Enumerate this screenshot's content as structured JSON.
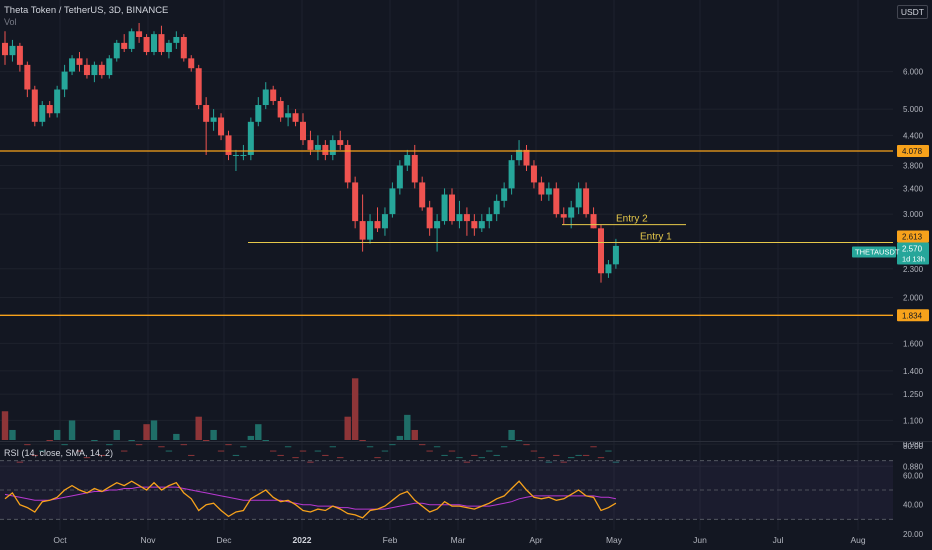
{
  "header": {
    "title": "Theta Token / TetherUS, 3D, BINANCE",
    "volume_label": "Vol",
    "currency": "USDT"
  },
  "rsi_label": "RSI (14, close, SMA, 14, 2)",
  "colors": {
    "background": "#131722",
    "up": "#26a69a",
    "down": "#ef5350",
    "level_line": "#f7a21b",
    "entry_line": "#e6c84a",
    "rsi_line": "#f7a21b",
    "rsi_ma": "#e040fb",
    "axis_text": "#b2b5be",
    "price_tag": "#26a69a"
  },
  "annotations": {
    "entry1": "Entry 1",
    "entry2": "Entry 2"
  },
  "price_axis": {
    "ticks": [
      "6.000",
      "5.000",
      "4.400",
      "3.800",
      "3.400",
      "3.000",
      "2.300",
      "2.000",
      "1.600",
      "1.400",
      "1.250",
      "1.100",
      "0.980",
      "0.880"
    ],
    "level_high": "4.078",
    "level_entry": "2.613",
    "level_low": "1.834",
    "current_price": "2.570",
    "countdown": "1d 13h",
    "symbol_tag": "THETAUSDT"
  },
  "rsi_axis": {
    "ticks": [
      "80.00",
      "60.00",
      "40.00",
      "20.00"
    ]
  },
  "time_axis": {
    "labels": [
      "Oct",
      "Nov",
      "Dec",
      "2022",
      "Feb",
      "Mar",
      "Apr",
      "May",
      "Jun",
      "Jul",
      "Aug"
    ]
  },
  "chart_data": [
    {
      "type": "candlestick",
      "title": "Theta Token / TetherUS, 3D, BINANCE",
      "y_scale": "log",
      "ylim": [
        1.0,
        8.5
      ],
      "horizontal_levels": [
        4.078,
        2.613,
        1.834
      ],
      "entry_levels": [
        {
          "label": "Entry 2",
          "value": 2.85
        },
        {
          "label": "Entry 1",
          "value": 2.613
        }
      ],
      "candles": [
        [
          6.9,
          7.3,
          6.2,
          6.5
        ],
        [
          6.5,
          7.0,
          6.3,
          6.8
        ],
        [
          6.8,
          6.9,
          6.0,
          6.2
        ],
        [
          6.2,
          6.3,
          5.3,
          5.5
        ],
        [
          5.5,
          5.6,
          4.6,
          4.7
        ],
        [
          4.7,
          5.2,
          4.6,
          5.1
        ],
        [
          5.1,
          5.2,
          4.8,
          4.9
        ],
        [
          4.9,
          5.6,
          4.8,
          5.5
        ],
        [
          5.5,
          6.2,
          5.3,
          6.0
        ],
        [
          6.0,
          6.5,
          5.9,
          6.4
        ],
        [
          6.4,
          6.6,
          6.0,
          6.2
        ],
        [
          6.2,
          6.4,
          5.8,
          5.9
        ],
        [
          5.9,
          6.3,
          5.7,
          6.2
        ],
        [
          6.2,
          6.3,
          5.8,
          5.9
        ],
        [
          5.9,
          6.5,
          5.8,
          6.4
        ],
        [
          6.4,
          7.0,
          6.3,
          6.9
        ],
        [
          6.9,
          7.2,
          6.6,
          6.7
        ],
        [
          6.7,
          7.4,
          6.6,
          7.3
        ],
        [
          7.3,
          7.6,
          6.9,
          7.1
        ],
        [
          7.1,
          7.2,
          6.5,
          6.6
        ],
        [
          6.6,
          7.3,
          6.5,
          7.2
        ],
        [
          7.2,
          7.5,
          6.5,
          6.6
        ],
        [
          6.6,
          7.0,
          6.4,
          6.9
        ],
        [
          6.9,
          7.3,
          6.7,
          7.1
        ],
        [
          7.1,
          7.2,
          6.3,
          6.4
        ],
        [
          6.4,
          6.5,
          6.0,
          6.1
        ],
        [
          6.1,
          6.2,
          5.0,
          5.1
        ],
        [
          5.1,
          5.3,
          4.0,
          4.7
        ],
        [
          4.7,
          5.0,
          4.5,
          4.8
        ],
        [
          4.8,
          4.9,
          4.3,
          4.4
        ],
        [
          4.4,
          4.5,
          3.9,
          4.0
        ],
        [
          4.0,
          4.1,
          3.7,
          4.0
        ],
        [
          4.0,
          4.2,
          3.9,
          4.0
        ],
        [
          4.0,
          4.8,
          3.9,
          4.7
        ],
        [
          4.7,
          5.3,
          4.6,
          5.1
        ],
        [
          5.1,
          5.7,
          5.0,
          5.5
        ],
        [
          5.5,
          5.6,
          5.1,
          5.2
        ],
        [
          5.2,
          5.3,
          4.7,
          4.8
        ],
        [
          4.8,
          5.1,
          4.6,
          4.9
        ],
        [
          4.9,
          5.0,
          4.6,
          4.7
        ],
        [
          4.7,
          4.9,
          4.2,
          4.3
        ],
        [
          4.3,
          4.5,
          4.0,
          4.1
        ],
        [
          4.1,
          4.4,
          3.9,
          4.2
        ],
        [
          4.2,
          4.3,
          3.9,
          4.0
        ],
        [
          4.0,
          4.4,
          3.9,
          4.3
        ],
        [
          4.3,
          4.5,
          4.1,
          4.2
        ],
        [
          4.2,
          4.3,
          3.4,
          3.5
        ],
        [
          3.5,
          3.6,
          2.8,
          2.9
        ],
        [
          2.9,
          3.3,
          2.5,
          2.65
        ],
        [
          2.65,
          3.0,
          2.6,
          2.9
        ],
        [
          2.9,
          3.1,
          2.75,
          2.8
        ],
        [
          2.8,
          3.1,
          2.7,
          3.0
        ],
        [
          3.0,
          3.5,
          2.95,
          3.4
        ],
        [
          3.4,
          3.9,
          3.3,
          3.8
        ],
        [
          3.8,
          4.1,
          3.7,
          4.0
        ],
        [
          4.0,
          4.2,
          3.4,
          3.5
        ],
        [
          3.5,
          3.6,
          3.05,
          3.1
        ],
        [
          3.1,
          3.2,
          2.7,
          2.8
        ],
        [
          2.8,
          3.0,
          2.5,
          2.9
        ],
        [
          2.9,
          3.4,
          2.85,
          3.3
        ],
        [
          3.3,
          3.4,
          2.85,
          2.9
        ],
        [
          2.9,
          3.2,
          2.8,
          3.0
        ],
        [
          3.0,
          3.1,
          2.7,
          2.9
        ],
        [
          2.9,
          3.0,
          2.7,
          2.8
        ],
        [
          2.8,
          3.0,
          2.75,
          2.9
        ],
        [
          2.9,
          3.1,
          2.8,
          3.0
        ],
        [
          3.0,
          3.3,
          2.9,
          3.2
        ],
        [
          3.2,
          3.5,
          3.1,
          3.4
        ],
        [
          3.4,
          4.0,
          3.3,
          3.9
        ],
        [
          3.9,
          4.3,
          3.8,
          4.1
        ],
        [
          4.1,
          4.2,
          3.7,
          3.8
        ],
        [
          3.8,
          3.9,
          3.4,
          3.5
        ],
        [
          3.5,
          3.6,
          3.2,
          3.3
        ],
        [
          3.3,
          3.5,
          3.2,
          3.4
        ],
        [
          3.4,
          3.5,
          2.95,
          3.0
        ],
        [
          3.0,
          3.1,
          2.85,
          2.95
        ],
        [
          2.95,
          3.2,
          2.8,
          3.1
        ],
        [
          3.1,
          3.5,
          3.0,
          3.4
        ],
        [
          3.4,
          3.5,
          2.95,
          3.0
        ],
        [
          3.0,
          3.1,
          2.8,
          2.8
        ],
        [
          2.8,
          2.85,
          2.15,
          2.25
        ],
        [
          2.25,
          2.4,
          2.2,
          2.35
        ],
        [
          2.35,
          2.66,
          2.3,
          2.57
        ]
      ],
      "volume": [
        1.15,
        1.05,
        0.9,
        0.98,
        0.93,
        0.95,
        1.0,
        1.05,
        0.98,
        1.1,
        0.95,
        0.92,
        1.0,
        0.93,
        0.98,
        1.05,
        0.95,
        1.0,
        0.98,
        1.08,
        1.1,
        0.97,
        0.95,
        1.03,
        0.98,
        0.93,
        1.12,
        1.0,
        1.05,
        0.95,
        0.98,
        0.93,
        0.97,
        1.02,
        1.08,
        1.0,
        0.95,
        0.93,
        0.97,
        0.92,
        0.95,
        0.9,
        0.95,
        0.93,
        0.97,
        0.92,
        1.12,
        1.35,
        1.0,
        0.97,
        0.92,
        0.95,
        0.98,
        1.02,
        1.13,
        1.05,
        0.98,
        0.95,
        0.97,
        0.93,
        0.95,
        0.92,
        0.9,
        0.93,
        0.92,
        0.95,
        0.93,
        0.97,
        1.05,
        1.0,
        0.98,
        0.95,
        0.92,
        0.9,
        0.93,
        0.9,
        0.92,
        0.93,
        0.93,
        0.97,
        0.92,
        0.95,
        0.9
      ]
    },
    {
      "type": "line",
      "title": "RSI (14, close, SMA, 14, 2)",
      "ylim": [
        20,
        80
      ],
      "bands": [
        70,
        50,
        30
      ],
      "series": [
        {
          "name": "RSI",
          "values": [
            44,
            48,
            40,
            38,
            35,
            42,
            43,
            45,
            50,
            53,
            50,
            48,
            51,
            49,
            52,
            55,
            53,
            56,
            53,
            50,
            55,
            50,
            53,
            55,
            48,
            44,
            36,
            40,
            41,
            36,
            32,
            35,
            36,
            44,
            47,
            50,
            45,
            42,
            43,
            40,
            36,
            35,
            37,
            36,
            39,
            37,
            34,
            33,
            31,
            36,
            37,
            39,
            43,
            47,
            49,
            43,
            39,
            35,
            37,
            42,
            39,
            39,
            38,
            37,
            39,
            41,
            44,
            46,
            51,
            56,
            50,
            45,
            44,
            45,
            43,
            44,
            47,
            50,
            46,
            45,
            36,
            38,
            41
          ]
        },
        {
          "name": "MA",
          "values": [
            47,
            46,
            45,
            44,
            43,
            43,
            43,
            44,
            45,
            46,
            47,
            48,
            49,
            49,
            50,
            50,
            51,
            51,
            52,
            52,
            52,
            52,
            52,
            52,
            51,
            50,
            49,
            48,
            47,
            46,
            45,
            44,
            43,
            43,
            43,
            43,
            43,
            43,
            42,
            41,
            40,
            40,
            39,
            39,
            39,
            38,
            38,
            37,
            37,
            37,
            37,
            37,
            38,
            39,
            40,
            41,
            41,
            40,
            40,
            40,
            40,
            40,
            39,
            39,
            39,
            39,
            40,
            41,
            42,
            44,
            45,
            46,
            46,
            46,
            46,
            46,
            46,
            46,
            46,
            46,
            45,
            45,
            44
          ]
        }
      ]
    }
  ]
}
